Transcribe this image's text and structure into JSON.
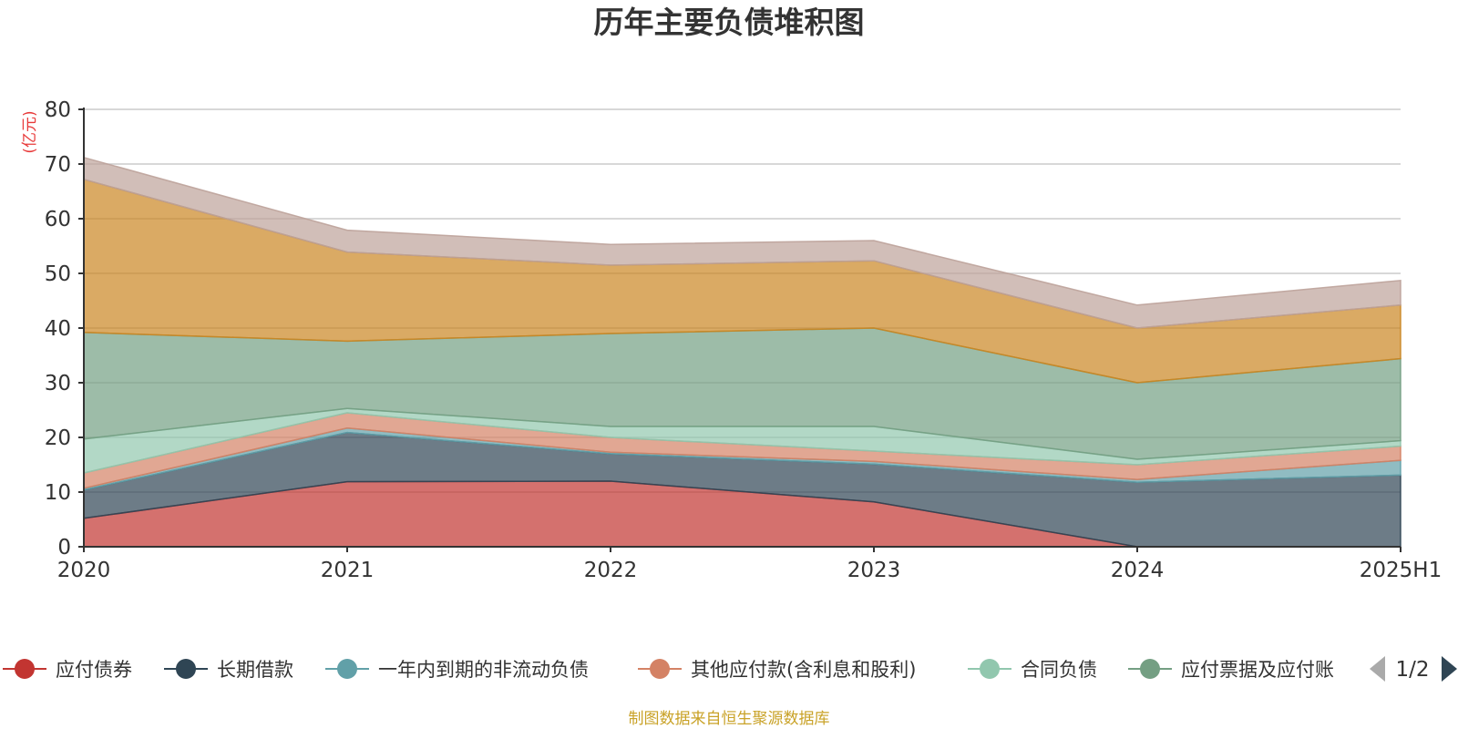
{
  "chart_data": {
    "type": "area",
    "stacked": true,
    "title": "历年主要负债堆积图",
    "y_unit_label": "(亿元)",
    "ylim": [
      0,
      80
    ],
    "yticks": [
      0,
      10,
      20,
      30,
      40,
      50,
      60,
      70,
      80
    ],
    "grid": true,
    "categories": [
      "2020",
      "2021",
      "2022",
      "2023",
      "2024",
      "2025H1"
    ],
    "series": [
      {
        "name": "应付债券",
        "color": "#c23531",
        "values": [
          5.2,
          11.9,
          12.0,
          8.2,
          0.0,
          0.0
        ]
      },
      {
        "name": "长期借款",
        "color": "#2f4554",
        "values": [
          5.2,
          9.0,
          5.0,
          6.9,
          11.8,
          13.1
        ]
      },
      {
        "name": "一年内到期的非流动负债",
        "color": "#61a0a8",
        "values": [
          0.3,
          0.8,
          0.3,
          0.5,
          0.5,
          2.7
        ]
      },
      {
        "name": "其他应付款(含利息和股利)",
        "color": "#d48265",
        "values": [
          2.8,
          2.8,
          2.7,
          1.9,
          2.7,
          2.6
        ]
      },
      {
        "name": "合同负债",
        "color": "#91c7ae",
        "values": [
          6.2,
          0.8,
          2.0,
          4.5,
          1.0,
          1.0
        ]
      },
      {
        "name": "应付票据及应付账款",
        "color": "#749f83",
        "values": [
          19.5,
          12.3,
          17.0,
          18.0,
          14.0,
          15.0
        ]
      },
      {
        "name": "",
        "color": "#ca8622",
        "values": [
          28.0,
          16.3,
          12.5,
          12.3,
          10.0,
          9.8
        ]
      },
      {
        "name": "",
        "color": "#bda29a",
        "values": [
          4.0,
          4.0,
          3.8,
          3.7,
          4.2,
          4.5
        ]
      }
    ],
    "legend_position": "bottom",
    "legend_page": "1/2",
    "legend_truncated_last": "应付票据及应付账"
  },
  "footer": {
    "source": "制图数据来自恒生聚源数据库"
  }
}
